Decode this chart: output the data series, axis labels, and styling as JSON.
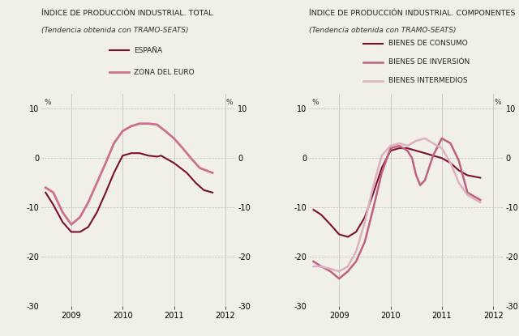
{
  "title1": "ÍNDICE DE PRODUCCIÓN INDUSTRIAL. TOTAL",
  "subtitle1": "(Tendencia obtenida con TRAMO-SEATS)",
  "title2": "ÍNDICE DE PRODUCCIÓN INDUSTRIAL. COMPONENTES",
  "subtitle2": "(Tendencia obtenida con TRAMO-SEATS)",
  "ylim": [
    -30,
    13
  ],
  "yticks": [
    -30,
    -20,
    -10,
    0,
    10
  ],
  "bg_color": "#f0efe8",
  "grid_color": "#bbbbbb",
  "espana_x": [
    2008.5,
    2008.65,
    2008.83,
    2009.0,
    2009.17,
    2009.33,
    2009.5,
    2009.67,
    2009.83,
    2010.0,
    2010.17,
    2010.33,
    2010.5,
    2010.67,
    2010.75,
    2010.83,
    2011.0,
    2011.25,
    2011.42,
    2011.58,
    2011.75
  ],
  "espana_y": [
    -7,
    -9.5,
    -13,
    -15,
    -15,
    -14,
    -11,
    -7,
    -3,
    0.5,
    1,
    1,
    0.5,
    0.3,
    0.5,
    0,
    -1,
    -3,
    -5,
    -6.5,
    -7
  ],
  "espana_color": "#7a1030",
  "espana_lw": 1.5,
  "euro_x": [
    2008.5,
    2008.65,
    2008.83,
    2009.0,
    2009.17,
    2009.33,
    2009.5,
    2009.67,
    2009.83,
    2010.0,
    2010.17,
    2010.33,
    2010.5,
    2010.67,
    2010.83,
    2011.0,
    2011.17,
    2011.33,
    2011.5,
    2011.75
  ],
  "euro_y": [
    -6,
    -7,
    -11,
    -13.5,
    -12,
    -9,
    -5,
    -1,
    3,
    5.5,
    6.5,
    7,
    7,
    6.8,
    5.5,
    4,
    2,
    0,
    -2,
    -3
  ],
  "euro_color": "#cc7090",
  "euro_lw": 2.0,
  "legend1": [
    "ESPAÑA",
    "ZONA DEL EURO"
  ],
  "legend1_colors": [
    "#7a1030",
    "#cc7090"
  ],
  "legend1_lw": [
    1.5,
    2.0
  ],
  "consumo_x": [
    2008.5,
    2008.65,
    2008.83,
    2009.0,
    2009.17,
    2009.33,
    2009.5,
    2009.67,
    2009.83,
    2010.0,
    2010.17,
    2010.33,
    2010.5,
    2010.67,
    2010.83,
    2011.0,
    2011.17,
    2011.33,
    2011.5,
    2011.75
  ],
  "consumo_y": [
    -10.5,
    -11.5,
    -13.5,
    -15.5,
    -16,
    -15,
    -12,
    -7,
    -2,
    1.5,
    2,
    2,
    1.5,
    1,
    0.5,
    0,
    -1,
    -2.5,
    -3.5,
    -4
  ],
  "consumo_color": "#7a1030",
  "consumo_lw": 1.5,
  "inversion_x": [
    2008.5,
    2008.65,
    2008.83,
    2009.0,
    2009.17,
    2009.33,
    2009.5,
    2009.67,
    2009.83,
    2010.0,
    2010.17,
    2010.33,
    2010.42,
    2010.5,
    2010.58,
    2010.67,
    2010.83,
    2011.0,
    2011.17,
    2011.33,
    2011.5,
    2011.75
  ],
  "inversion_y": [
    -21,
    -22,
    -23,
    -24.5,
    -23,
    -21,
    -17,
    -10,
    -3,
    2,
    2.5,
    1.5,
    0,
    -3.5,
    -5.5,
    -4.5,
    0.5,
    4,
    3,
    -0.5,
    -7,
    -8.5
  ],
  "inversion_color": "#c06080",
  "inversion_lw": 1.8,
  "intermedios_x": [
    2008.5,
    2008.65,
    2008.83,
    2009.0,
    2009.17,
    2009.33,
    2009.5,
    2009.67,
    2009.83,
    2010.0,
    2010.17,
    2010.33,
    2010.5,
    2010.67,
    2010.83,
    2011.0,
    2011.17,
    2011.33,
    2011.5,
    2011.75
  ],
  "intermedios_y": [
    -22,
    -22,
    -22.5,
    -23,
    -22,
    -19,
    -13,
    -5.5,
    0.5,
    2.5,
    3,
    2.5,
    3.5,
    4,
    3,
    2,
    -1,
    -5,
    -7.5,
    -9
  ],
  "intermedios_color": "#ddb0c0",
  "intermedios_lw": 1.8,
  "legend2": [
    "BIENES DE CONSUMO",
    "BIENES DE INVERSIÓN",
    "BIENES INTERMEDIOS"
  ],
  "legend2_colors": [
    "#7a1030",
    "#c06080",
    "#ddb0c0"
  ],
  "legend2_lw": [
    1.5,
    1.8,
    1.8
  ],
  "xlim": [
    2008.42,
    2012.2
  ],
  "xticks": [
    2009,
    2010,
    2011,
    2012
  ],
  "xticklabels": [
    "2009",
    "2010",
    "2011",
    "2012"
  ]
}
